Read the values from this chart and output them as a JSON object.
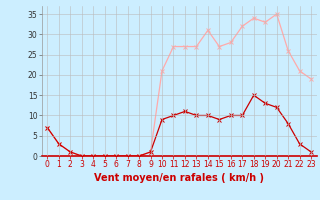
{
  "x": [
    0,
    1,
    2,
    3,
    4,
    5,
    6,
    7,
    8,
    9,
    10,
    11,
    12,
    13,
    14,
    15,
    16,
    17,
    18,
    19,
    20,
    21,
    22,
    23
  ],
  "vent_moyen": [
    7,
    3,
    1,
    0,
    0,
    0,
    0,
    0,
    0,
    1,
    9,
    10,
    11,
    10,
    10,
    9,
    10,
    10,
    15,
    13,
    12,
    8,
    3,
    1
  ],
  "rafales": [
    7,
    3,
    1,
    0,
    0,
    0,
    0,
    0,
    0,
    1,
    21,
    27,
    27,
    27,
    31,
    27,
    28,
    32,
    34,
    33,
    35,
    26,
    21,
    19
  ],
  "color_moyen": "#cc0000",
  "color_rafales": "#ffaaaa",
  "bg_color": "#cceeff",
  "grid_color": "#bbbbbb",
  "xlabel": "Vent moyen/en rafales ( km/h )",
  "xlabel_color": "#cc0000",
  "ylim": [
    0,
    37
  ],
  "xlim": [
    -0.5,
    23.5
  ],
  "yticks": [
    0,
    5,
    10,
    15,
    20,
    25,
    30,
    35
  ],
  "xticks": [
    0,
    1,
    2,
    3,
    4,
    5,
    6,
    7,
    8,
    9,
    10,
    11,
    12,
    13,
    14,
    15,
    16,
    17,
    18,
    19,
    20,
    21,
    22,
    23
  ],
  "tick_fontsize": 5.5,
  "xlabel_fontsize": 7.0,
  "marker_size": 2.5,
  "line_width": 0.9
}
